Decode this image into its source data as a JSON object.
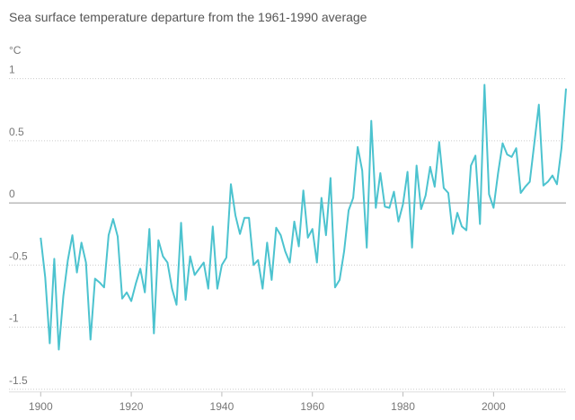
{
  "chart_data": {
    "type": "line",
    "title": "Sea surface temperature departure from the 1961-1990 average",
    "y_label": "°C",
    "x": [
      1900,
      1901,
      1902,
      1903,
      1904,
      1905,
      1906,
      1907,
      1908,
      1909,
      1910,
      1911,
      1912,
      1913,
      1914,
      1915,
      1916,
      1917,
      1918,
      1919,
      1920,
      1921,
      1922,
      1923,
      1924,
      1925,
      1926,
      1927,
      1928,
      1929,
      1930,
      1931,
      1932,
      1933,
      1934,
      1935,
      1936,
      1937,
      1938,
      1939,
      1940,
      1941,
      1942,
      1943,
      1944,
      1945,
      1946,
      1947,
      1948,
      1949,
      1950,
      1951,
      1952,
      1953,
      1954,
      1955,
      1956,
      1957,
      1958,
      1959,
      1960,
      1961,
      1962,
      1963,
      1964,
      1965,
      1966,
      1967,
      1968,
      1969,
      1970,
      1971,
      1972,
      1973,
      1974,
      1975,
      1976,
      1977,
      1978,
      1979,
      1980,
      1981,
      1982,
      1983,
      1984,
      1985,
      1986,
      1987,
      1988,
      1989,
      1990,
      1991,
      1992,
      1993,
      1994,
      1995,
      1996,
      1997,
      1998,
      1999,
      2000,
      2001,
      2002,
      2003,
      2004,
      2005,
      2006,
      2007,
      2008,
      2009,
      2010,
      2011,
      2012,
      2013,
      2014,
      2015,
      2016
    ],
    "values": [
      -0.28,
      -0.6,
      -1.13,
      -0.45,
      -1.18,
      -0.75,
      -0.46,
      -0.26,
      -0.56,
      -0.32,
      -0.48,
      -1.1,
      -0.61,
      -0.64,
      -0.68,
      -0.26,
      -0.13,
      -0.27,
      -0.77,
      -0.72,
      -0.79,
      -0.65,
      -0.53,
      -0.72,
      -0.21,
      -1.05,
      -0.3,
      -0.43,
      -0.48,
      -0.69,
      -0.82,
      -0.16,
      -0.78,
      -0.43,
      -0.58,
      -0.53,
      -0.48,
      -0.69,
      -0.19,
      -0.69,
      -0.5,
      -0.44,
      0.15,
      -0.1,
      -0.25,
      -0.12,
      -0.12,
      -0.5,
      -0.46,
      -0.69,
      -0.32,
      -0.62,
      -0.2,
      -0.26,
      -0.39,
      -0.48,
      -0.15,
      -0.35,
      0.1,
      -0.28,
      -0.21,
      -0.48,
      0.04,
      -0.26,
      0.2,
      -0.68,
      -0.62,
      -0.39,
      -0.06,
      0.04,
      0.45,
      0.26,
      -0.36,
      0.66,
      -0.04,
      0.24,
      -0.03,
      -0.04,
      0.09,
      -0.15,
      -0.01,
      0.25,
      -0.36,
      0.3,
      -0.05,
      0.06,
      0.29,
      0.13,
      0.49,
      0.12,
      0.08,
      -0.25,
      -0.08,
      -0.19,
      -0.22,
      0.3,
      0.38,
      -0.17,
      0.95,
      0.07,
      -0.04,
      0.24,
      0.48,
      0.39,
      0.37,
      0.44,
      0.08,
      0.13,
      0.17,
      0.48,
      0.79,
      0.14,
      0.17,
      0.22,
      0.15,
      0.44,
      0.92
    ],
    "color": "#4cc3cf",
    "xlim": [
      1893,
      2016
    ],
    "xticks": [
      1900,
      1920,
      1940,
      1960,
      1980,
      2000
    ],
    "ylim": [
      -1.5,
      1
    ],
    "yticks": [
      1,
      0.5,
      0,
      -0.5,
      -1,
      -1.5
    ],
    "grid": true
  }
}
